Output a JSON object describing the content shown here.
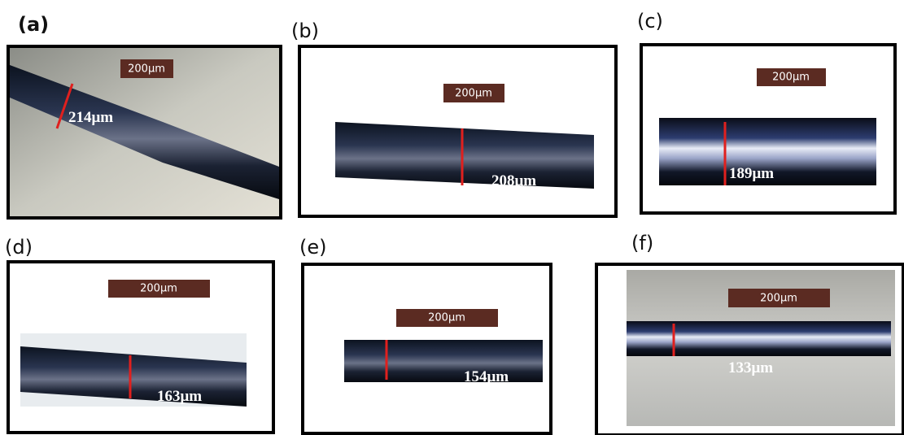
{
  "panels": [
    {
      "label": "(a)",
      "scale": "200μm",
      "measurement": "214μm"
    },
    {
      "label": "(b)",
      "scale": "200μm",
      "measurement": "208μm"
    },
    {
      "label": "(c)",
      "scale": "200μm",
      "measurement": "189μm"
    },
    {
      "label": "(d)",
      "scale": "200μm",
      "measurement": "163μm"
    },
    {
      "label": "(e)",
      "scale": "200μm",
      "measurement": "154μm"
    },
    {
      "label": "(f)",
      "scale": "200μm",
      "measurement": "133μm"
    }
  ]
}
